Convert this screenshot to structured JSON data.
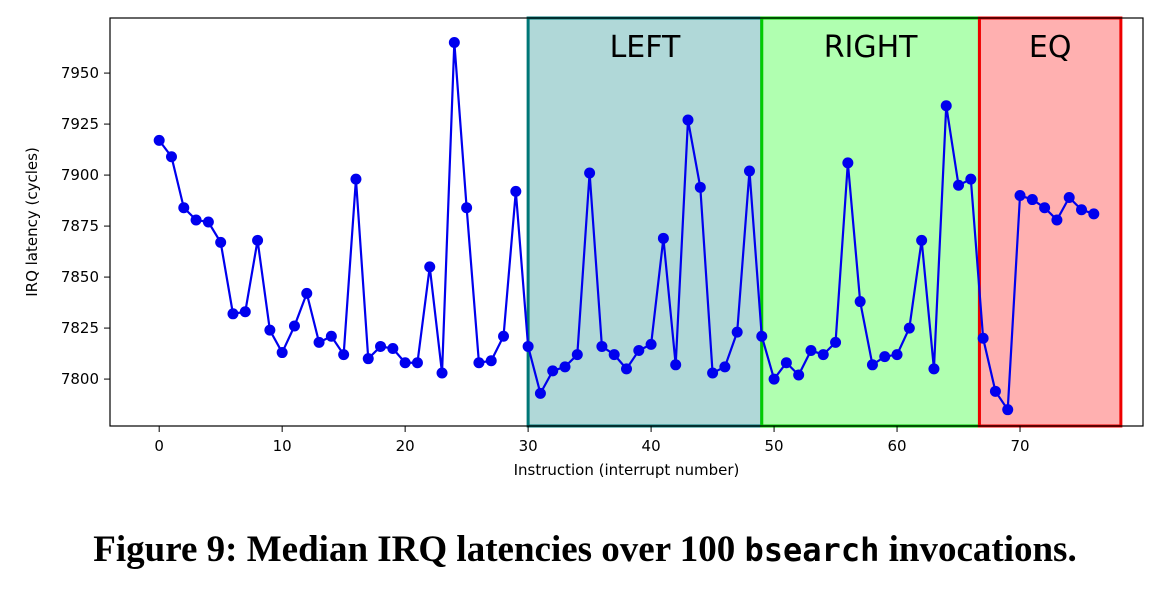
{
  "chart_data": {
    "type": "line",
    "xlabel": "Instruction (interrupt number)",
    "ylabel": "IRQ latency (cycles)",
    "xlim": [
      -4,
      80
    ],
    "ylim": [
      7777,
      7977
    ],
    "xticks": [
      0,
      10,
      20,
      30,
      40,
      50,
      60,
      70
    ],
    "yticks": [
      7800,
      7825,
      7850,
      7875,
      7900,
      7925,
      7950
    ],
    "series": [
      {
        "name": "median IRQ latency",
        "color": "#0000ee",
        "x": [
          0,
          1,
          2,
          3,
          4,
          5,
          6,
          7,
          8,
          9,
          10,
          11,
          12,
          13,
          14,
          15,
          16,
          17,
          18,
          19,
          20,
          21,
          22,
          23,
          24,
          25,
          26,
          27,
          28,
          29,
          30,
          31,
          32,
          33,
          34,
          35,
          36,
          37,
          38,
          39,
          40,
          41,
          42,
          43,
          44,
          45,
          46,
          47,
          48,
          49,
          50,
          51,
          52,
          53,
          54,
          55,
          56,
          57,
          58,
          59,
          60,
          61,
          62,
          63,
          64,
          65,
          66,
          67,
          68,
          69,
          70,
          71,
          72,
          73,
          74,
          75,
          76
        ],
        "values": [
          7917,
          7909,
          7884,
          7878,
          7877,
          7867,
          7832,
          7833,
          7868,
          7824,
          7813,
          7826,
          7842,
          7818,
          7821,
          7812,
          7898,
          7810,
          7816,
          7815,
          7808,
          7808,
          7855,
          7803,
          7965,
          7884,
          7808,
          7809,
          7821,
          7892,
          7816,
          7793,
          7804,
          7806,
          7812,
          7901,
          7816,
          7812,
          7805,
          7814,
          7817,
          7869,
          7807,
          7927,
          7894,
          7803,
          7806,
          7823,
          7902,
          7821,
          7800,
          7808,
          7802,
          7814,
          7812,
          7818,
          7906,
          7838,
          7807,
          7811,
          7812,
          7825,
          7868,
          7805,
          7934,
          7895,
          7898,
          7820,
          7794,
          7785,
          7890,
          7888,
          7884,
          7878,
          7889,
          7883,
          7881
        ]
      }
    ],
    "regions": [
      {
        "label": "LEFT",
        "x_start": 30,
        "x_end": 49,
        "fill": "#b0d8d8",
        "stroke": "#007777"
      },
      {
        "label": "RIGHT",
        "x_start": 49,
        "x_end": 66.7,
        "fill": "#b0ffb0",
        "stroke": "#00cc00"
      },
      {
        "label": "EQ",
        "x_start": 66.7,
        "x_end": 78.2,
        "fill": "#ffb0b0",
        "stroke": "#ee0000"
      }
    ]
  },
  "caption": {
    "prefix": "Figure 9: Median IRQ latencies over 100 ",
    "code": "bsearch",
    "suffix": " invocations."
  }
}
